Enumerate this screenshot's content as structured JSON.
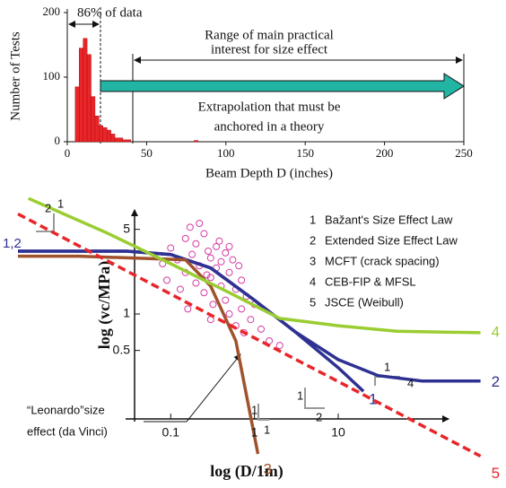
{
  "chart_data": [
    {
      "type": "histogram",
      "xlabel": "Beam Depth D (inches)",
      "ylabel": "Number of Tests",
      "bins": [
        5,
        7.5,
        10,
        12.5,
        15,
        17.5,
        20,
        22.5,
        25,
        27.5,
        30,
        35,
        40,
        80,
        82.5
      ],
      "values": [
        85,
        145,
        160,
        135,
        70,
        40,
        25,
        22,
        18,
        12,
        6,
        3,
        0,
        2
      ],
      "color": "#e8262a",
      "xlim": [
        0,
        250
      ],
      "xticks": [
        0,
        50,
        100,
        150,
        200,
        250
      ],
      "ylim": [
        0,
        200
      ],
      "yticks": [
        0,
        100,
        200
      ],
      "annotations": [
        "86% of data",
        "Range of main practical",
        "interest for size effect",
        "Extrapolation that must be",
        "anchored in a theory"
      ]
    },
    {
      "type": "line",
      "xlog": true,
      "ylog": true,
      "xlabel": "log (D/1m)",
      "ylabel": "log (vc/MPa)",
      "xlim": [
        0.0015,
        600
      ],
      "xticks": [
        0.1,
        1,
        10
      ],
      "ylim": [
        0.06,
        10
      ],
      "yticks": [
        0.5,
        1,
        5
      ],
      "series": [
        {
          "label": "1",
          "name": "Bažant's Size Effect Law",
          "color": "#2e3192",
          "dashed": false,
          "x": [
            0.0015,
            0.03,
            0.1,
            0.3,
            1,
            3,
            10,
            20
          ],
          "values": [
            3.3,
            3.3,
            3.1,
            2.4,
            1.3,
            0.72,
            0.36,
            0.23
          ]
        },
        {
          "label": "2",
          "name": "Extended Size Effect Law",
          "color": "#2e3192",
          "dashed": false,
          "x": [
            0.0015,
            0.03,
            0.1,
            0.3,
            1,
            3,
            10,
            30,
            100,
            500
          ],
          "values": [
            3.3,
            3.3,
            3.1,
            2.4,
            1.3,
            0.72,
            0.42,
            0.31,
            0.28,
            0.28
          ]
        },
        {
          "label": "3",
          "name": "MCFT (crack spacing)",
          "color": "#a0522d",
          "dashed": false,
          "x": [
            0.0015,
            0.008,
            0.15,
            0.3,
            0.6,
            1.1
          ],
          "values": [
            3,
            3,
            2.8,
            1.7,
            0.6,
            0.07
          ]
        },
        {
          "label": "4",
          "name": "CEB-FIP & MFSL",
          "color": "#9acd32",
          "dashed": false,
          "x": [
            0.002,
            0.017,
            0.1,
            0.5,
            2,
            10,
            50,
            500
          ],
          "values": [
            9,
            4.7,
            2.6,
            1.5,
            0.92,
            0.8,
            0.72,
            0.7
          ]
        },
        {
          "label": "5",
          "name": "JSCE (Weibull)",
          "color": "#e8262a",
          "dashed": true,
          "x": [
            0.0015,
            0.01,
            0.1,
            1,
            10,
            100,
            500
          ],
          "values": [
            6.7,
            3.37,
            1.46,
            0.635,
            0.277,
            0.12,
            0.067
          ]
        }
      ],
      "scatter": {
        "color": "#d63ca4",
        "x": [
          0.1,
          0.12,
          0.15,
          0.15,
          0.18,
          0.2,
          0.2,
          0.22,
          0.25,
          0.25,
          0.28,
          0.3,
          0.3,
          0.32,
          0.35,
          0.35,
          0.4,
          0.4,
          0.45,
          0.45,
          0.5,
          0.5,
          0.55,
          0.6,
          0.6,
          0.7,
          0.7,
          0.8,
          0.9,
          1,
          1.2,
          1.5,
          2,
          0.08,
          0.09,
          0.13,
          0.17,
          0.22,
          0.27,
          0.38,
          0.5,
          0.65,
          0.75,
          0.16,
          0.3
        ],
        "values": [
          3.5,
          2.8,
          4.2,
          2.2,
          3.1,
          1.8,
          3.8,
          2.5,
          4.6,
          1.5,
          3.3,
          2.0,
          2.9,
          1.2,
          3.6,
          2.4,
          1.7,
          2.7,
          3.2,
          1.3,
          2.2,
          1.0,
          2.8,
          1.6,
          0.8,
          1.9,
          1.1,
          1.4,
          0.9,
          1.2,
          0.75,
          0.6,
          0.55,
          2.6,
          1.9,
          1.6,
          5.2,
          5.6,
          2.1,
          4.0,
          3.6,
          2.5,
          0.7,
          1.1,
          0.9
        ]
      },
      "annotations": [
        "2",
        "1",
        "1",
        "1",
        "1",
        "2",
        "1",
        "4",
        "“Leonardo”size",
        "effect (da Vinci)",
        "1,2"
      ]
    }
  ]
}
